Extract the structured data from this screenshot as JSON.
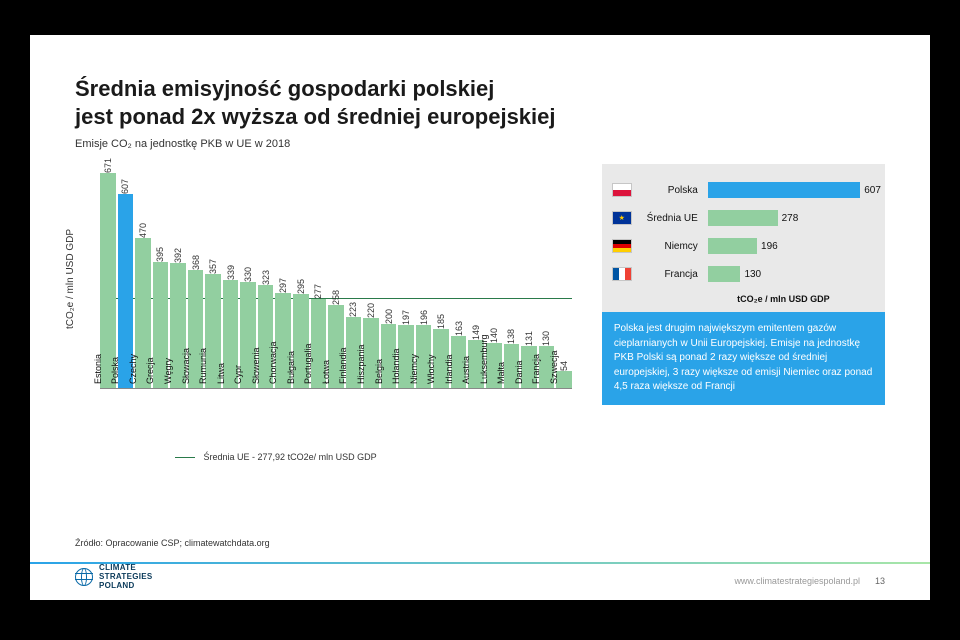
{
  "title_line1": "Średnia emisyjność gospodarki polskiej",
  "title_line2": "jest ponad 2x wyższa od średniej europejskiej",
  "subtitle": "Emisje CO₂ na jednostkę PKB w UE w 2018",
  "main_chart": {
    "type": "bar",
    "ylabel": "tCO₂e / mln USD GDP",
    "ylim": [
      0,
      700
    ],
    "avg_line_value": 277.92,
    "avg_line_label": "Średnia UE - 277,92 tCO2e/ mln USD GDP",
    "bar_color": "#92cfa0",
    "highlight_color": "#2aa3e8",
    "highlight_index": 1,
    "label_fontsize": 9,
    "value_fontsize": 9,
    "axis_color": "#888888",
    "avg_line_color": "#2a7a4a",
    "categories": [
      "Estonia",
      "Polska",
      "Czechy",
      "Grecja",
      "Węgry",
      "Słowacja",
      "Rumunia",
      "Litwa",
      "Cypr",
      "Słowenia",
      "Chorwacja",
      "Bułgaria",
      "Portugalia",
      "Łotwa",
      "Finlandia",
      "Hiszpania",
      "Belgia",
      "Holandia",
      "Niemcy",
      "Włochy",
      "Irlandia",
      "Austria",
      "Luksemburg",
      "Malta",
      "Dania",
      "Francja",
      "Szwecja"
    ],
    "values": [
      671,
      607,
      470,
      395,
      392,
      368,
      357,
      339,
      330,
      323,
      297,
      295,
      277,
      258,
      223,
      220,
      200,
      197,
      196,
      185,
      163,
      149,
      140,
      138,
      131,
      130,
      54
    ]
  },
  "comparison": {
    "type": "bar",
    "max": 650,
    "axis_label": "tCO₂e / mln USD GDP",
    "background_color": "#e9e9e9",
    "rows": [
      {
        "label": "Polska",
        "value": 607,
        "color": "#2aa3e8",
        "flag": "pl"
      },
      {
        "label": "Średnia UE",
        "value": 278,
        "color": "#92cfa0",
        "flag": "eu"
      },
      {
        "label": "Niemcy",
        "value": 196,
        "color": "#92cfa0",
        "flag": "de"
      },
      {
        "label": "Francja",
        "value": 130,
        "color": "#92cfa0",
        "flag": "fr"
      }
    ]
  },
  "callout_text": "Polska jest drugim największym emitentem gazów cieplarnianych w Unii Europejskiej. Emisje na jednostkę PKB Polski są ponad 2 razy większe od średniej europejskiej, 3 razy większe od emisji Niemiec oraz ponad 4,5 raza większe od Francji",
  "callout_bg": "#2aa3e8",
  "callout_text_color": "#ffffff",
  "source": "Źródło:  Opracowanie CSP; climatewatchdata.org",
  "logo_text": "CLIMATE\nSTRATEGIES\nPOLAND",
  "footer_url": "www.climatestrategiespoland.pl",
  "page_number": "13"
}
